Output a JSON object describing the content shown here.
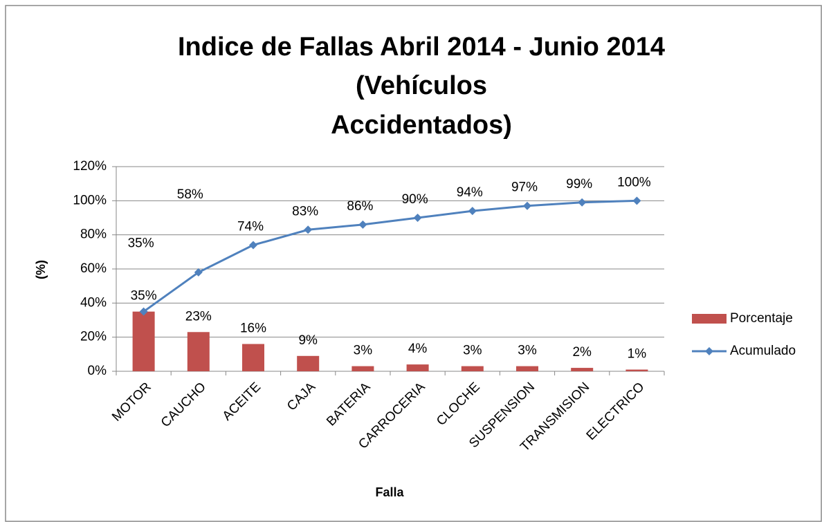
{
  "chart_data": {
    "type": "bar-line",
    "title": [
      "Indice de Fallas Abril 2014 - Junio 2014",
      "(Vehículos",
      "Accidentados)"
    ],
    "x_label": "Falla",
    "y_label": "(%)",
    "categories": [
      "MOTOR",
      "CAUCHO",
      "ACEITE",
      "CAJA",
      "BATERIA",
      "CARROCERIA",
      "CLOCHE",
      "SUSPENSION",
      "TRANSMISION",
      "ELECTRICO"
    ],
    "series": [
      {
        "name": "Porcentaje",
        "type": "bar",
        "color": "#c0504d",
        "values": [
          35,
          23,
          16,
          9,
          3,
          4,
          3,
          3,
          2,
          1
        ],
        "value_labels": [
          "35%",
          "23%",
          "16%",
          "9%",
          "3%",
          "4%",
          "3%",
          "3%",
          "2%",
          "1%"
        ]
      },
      {
        "name": "Acumulado",
        "type": "line",
        "color": "#4f81bd",
        "values": [
          35,
          58,
          74,
          83,
          86,
          90,
          94,
          97,
          99,
          100
        ],
        "value_labels": [
          "35%",
          "58%",
          "74%",
          "83%",
          "86%",
          "90%",
          "94%",
          "97%",
          "99%",
          "100%"
        ]
      }
    ],
    "ylim": [
      0,
      120
    ],
    "yticks": [
      {
        "value": 0,
        "label": "0%"
      },
      {
        "value": 20,
        "label": "20%"
      },
      {
        "value": 40,
        "label": "40%"
      },
      {
        "value": 60,
        "label": "60%"
      },
      {
        "value": 80,
        "label": "80%"
      },
      {
        "value": 100,
        "label": "100%"
      },
      {
        "value": 120,
        "label": "120%"
      }
    ],
    "grid": true,
    "legend": "right"
  }
}
